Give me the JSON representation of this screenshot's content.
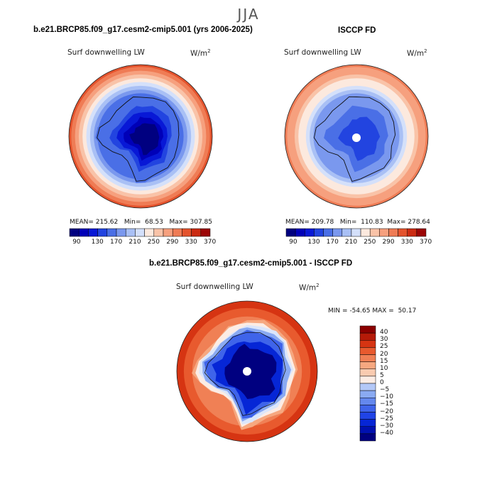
{
  "season": "JJA",
  "colors": {
    "map_discrete": [
      "#000080",
      "#0000b8",
      "#0818d6",
      "#2244e0",
      "#4a6fe6",
      "#7a98ee",
      "#a9c0f5",
      "#d4e0fa",
      "#fce9de",
      "#f9c3a8",
      "#f6a07e",
      "#ef7c55",
      "#e4532d",
      "#cb2b12",
      "#9c0505"
    ],
    "diff_discrete": [
      "#000080",
      "#0010b0",
      "#0626d6",
      "#2044e6",
      "#3f64ea",
      "#6488ee",
      "#8aaaf2",
      "#b3c8f7",
      "#dbe6fb",
      "#fcece4",
      "#f9cbb0",
      "#f6a880",
      "#f08055",
      "#e85a2e",
      "#d63412",
      "#b51a08",
      "#8b0000"
    ]
  },
  "chart_data": [
    {
      "type": "heatmap",
      "title": "b.e21.BRCP85.f09_g17.cesm2-cmip5.001 (yrs 2006-2025)",
      "variable": "Surf downwelling LW",
      "units": "W/m",
      "units_exp": "2",
      "mean": "215.62",
      "min": "68.53",
      "max": "307.85",
      "mean_label": "MEAN=",
      "min_label": "Min=",
      "max_label": "Max=",
      "colorbar_ticks": [
        "90",
        "130",
        "170",
        "210",
        "250",
        "290",
        "330",
        "370"
      ],
      "levels": [
        70,
        90,
        110,
        130,
        150,
        170,
        190,
        210,
        230,
        250,
        270,
        290,
        310,
        330,
        350,
        370
      ],
      "field": {
        "pole": 68,
        "coast": 150,
        "ocean": 300
      }
    },
    {
      "type": "heatmap",
      "title": "ISCCP FD",
      "variable": "Surf downwelling LW",
      "units": "W/m",
      "units_exp": "2",
      "mean": "209.78",
      "min": "110.83",
      "max": "278.64",
      "mean_label": "MEAN=",
      "min_label": "Min=",
      "max_label": "Max=",
      "colorbar_ticks": [
        "90",
        "130",
        "170",
        "210",
        "250",
        "290",
        "330",
        "370"
      ],
      "levels": [
        70,
        90,
        110,
        130,
        150,
        170,
        190,
        210,
        230,
        250,
        270,
        290,
        310,
        330,
        350,
        370
      ],
      "field": {
        "pole": 111,
        "coast": 170,
        "ocean": 278
      }
    },
    {
      "type": "heatmap",
      "title": "b.e21.BRCP85.f09_g17.cesm2-cmip5.001 - ISCCP FD",
      "variable": "Surf downwelling LW",
      "units": "W/m",
      "units_exp": "2",
      "min_label": "MIN =",
      "min": "-54.65",
      "max_label": "MAX =",
      "max": "50.17",
      "colorbar_levels": [
        "40",
        "30",
        "25",
        "20",
        "15",
        "10",
        "5",
        "0",
        "−5",
        "−10",
        "−15",
        "−20",
        "−25",
        "−30",
        "−40"
      ],
      "field": {
        "interior": -45,
        "coast": -20,
        "ocean": 30
      }
    }
  ]
}
